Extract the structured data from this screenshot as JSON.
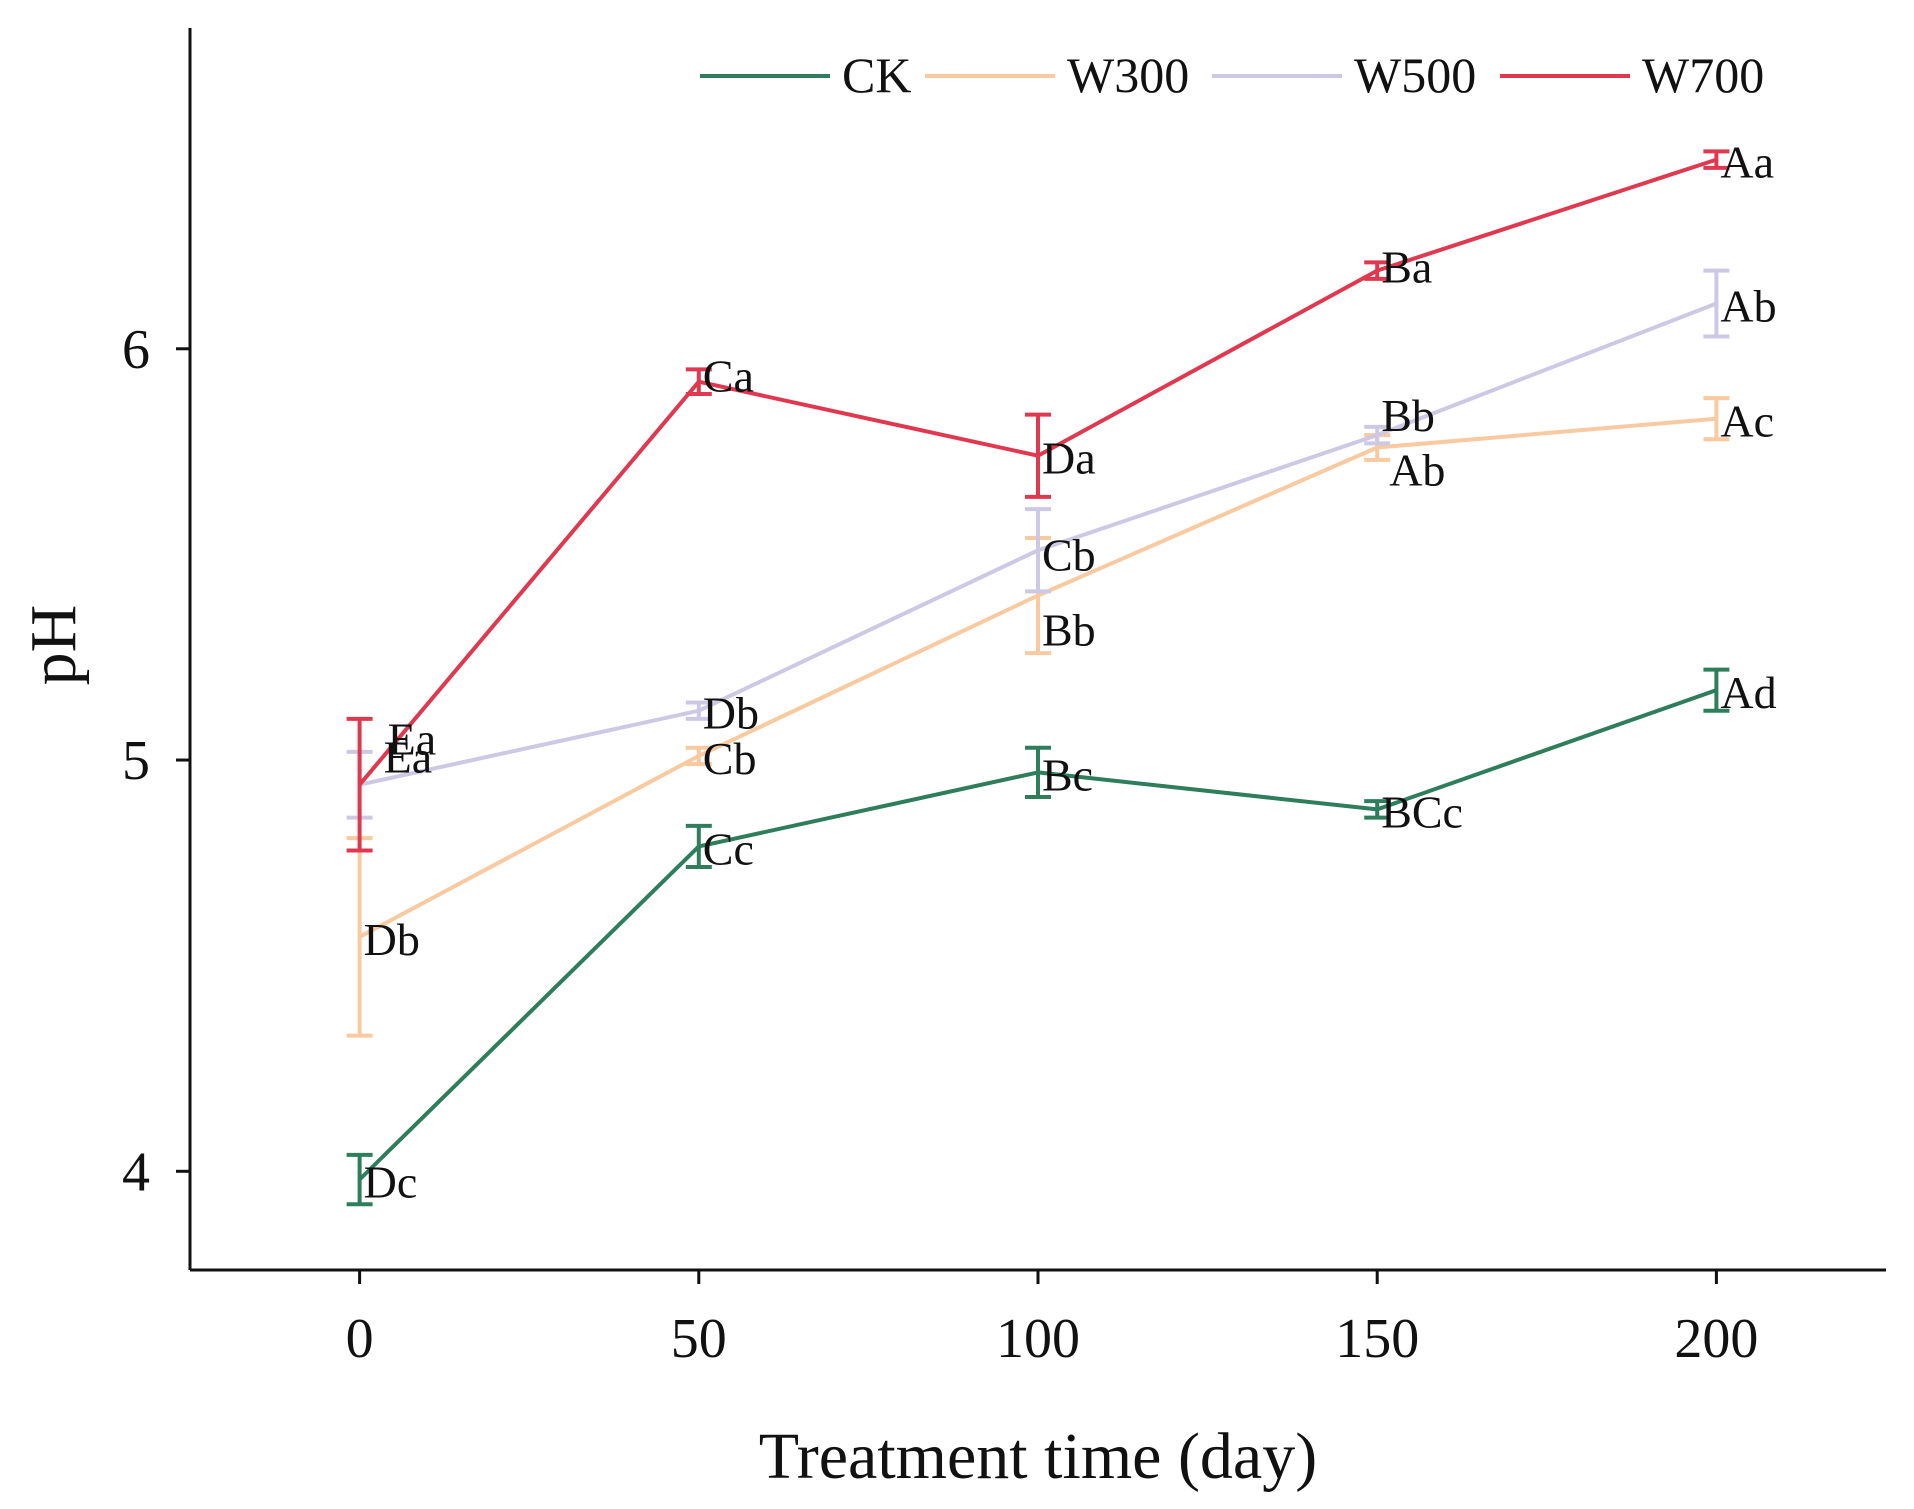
{
  "chart_data": {
    "type": "line",
    "title": "",
    "xlabel": "Treatment time (day)",
    "ylabel": "pH",
    "x": [
      0,
      50,
      100,
      150,
      200
    ],
    "x_ticks": [
      "0",
      "50",
      "100",
      "150",
      "200"
    ],
    "y_ticks": [
      "4",
      "5",
      "6"
    ],
    "xlim": [
      -25,
      225
    ],
    "ylim": [
      3.76,
      6.78
    ],
    "grid": false,
    "legend_position": "top",
    "series": [
      {
        "name": "CK",
        "color": "#2e7d5b",
        "values": [
          3.98,
          4.79,
          4.97,
          4.88,
          5.17
        ],
        "errors": [
          0.06,
          0.05,
          0.06,
          0.02,
          0.05
        ],
        "labels": [
          "Dc",
          "Cc",
          "Bc",
          "BCc",
          "Ad"
        ]
      },
      {
        "name": "W300",
        "color": "#f9c9a0",
        "values": [
          4.57,
          5.01,
          5.4,
          5.76,
          5.83
        ],
        "errors": [
          0.24,
          0.02,
          0.14,
          0.03,
          0.05
        ],
        "labels": [
          "Db",
          "Cb",
          "Bb",
          "Ab",
          "Ac"
        ]
      },
      {
        "name": "W500",
        "color": "#cdc9e4",
        "values": [
          4.94,
          5.12,
          5.51,
          5.79,
          6.11
        ],
        "errors": [
          0.08,
          0.02,
          0.1,
          0.02,
          0.08
        ],
        "labels": [
          "Ea",
          "Db",
          "Cb",
          "Bb",
          "Ab"
        ]
      },
      {
        "name": "W700",
        "color": "#e0394f",
        "values": [
          4.94,
          5.92,
          5.74,
          6.19,
          6.46
        ],
        "errors": [
          0.16,
          0.03,
          0.1,
          0.02,
          0.02
        ],
        "labels": [
          "Ea",
          "Ca",
          "Da",
          "Ba",
          "Aa"
        ]
      }
    ]
  }
}
